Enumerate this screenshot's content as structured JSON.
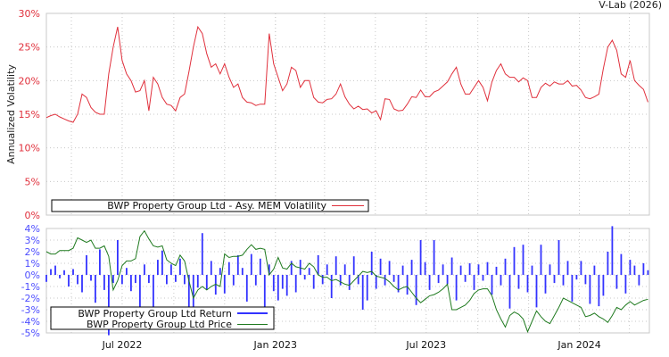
{
  "credit": "V-Lab (2026)",
  "chart_data": [
    {
      "type": "line",
      "title": "",
      "ylabel": "Annualized Volatility",
      "ylim": [
        0,
        30
      ],
      "yticks": [
        "0%",
        "5%",
        "10%",
        "15%",
        "20%",
        "25%",
        "30%"
      ],
      "ytick_values": [
        0,
        5,
        10,
        15,
        20,
        25,
        30
      ],
      "xlim": [
        "2022-04-01",
        "2024-03-25"
      ],
      "grid": true,
      "legend_position": "bottom-left",
      "colors": {
        "line": "#e0303c",
        "ticks": "#e0303c"
      },
      "series": [
        {
          "name": "BWP Property Group Ltd - Asy. MEM Volatility",
          "x_start": "2022-04-01",
          "x_step_days": 5.35,
          "values": [
            14.5,
            14.8,
            15,
            14.6,
            14.3,
            14,
            13.8,
            15,
            18,
            17.5,
            16,
            15.3,
            15,
            15,
            21,
            25,
            28,
            23,
            21,
            20,
            18.3,
            18.5,
            20,
            15.5,
            20.5,
            19.5,
            17.5,
            16.5,
            16.3,
            15.5,
            17.5,
            18,
            21.3,
            25,
            28,
            27,
            24,
            22,
            22.5,
            21,
            22.5,
            20.5,
            19,
            19.5,
            17.5,
            16.8,
            16.7,
            16.3,
            16.5,
            16.5,
            27,
            22.5,
            20.5,
            18.5,
            19.5,
            22,
            21.5,
            19,
            20,
            20,
            17.5,
            16.8,
            16.7,
            17.2,
            17.3,
            18,
            19.5,
            17.6,
            16.5,
            15.8,
            16.2,
            15.7,
            15.8,
            15.2,
            15.5,
            14.2,
            17.3,
            17.2,
            15.8,
            15.5,
            15.6,
            16.5,
            17.6,
            17.5,
            18.6,
            17.6,
            17.6,
            18.3,
            18.6,
            19.2,
            19.8,
            21,
            22,
            19.5,
            18,
            18,
            19,
            20,
            19,
            17,
            19.8,
            21.5,
            22.5,
            21,
            20.5,
            20.5,
            19.8,
            20.4,
            20,
            17.5,
            17.5,
            19,
            19.6,
            19.2,
            19.8,
            19.5,
            19.5,
            20,
            19.2,
            19.3,
            18.6,
            17.5,
            17.3,
            17.6,
            18,
            21.8,
            25,
            26,
            24.5,
            21,
            20.5,
            23,
            20,
            19.3,
            18.7,
            16.8
          ]
        }
      ]
    },
    {
      "type": "bar+line",
      "ylim": [
        -5,
        4
      ],
      "yticks": [
        "-5%",
        "-4%",
        "-3%",
        "-2%",
        "-1%",
        "0%",
        "1%",
        "2%",
        "3%",
        "4%"
      ],
      "ytick_values": [
        -5,
        -4,
        -3,
        -2,
        -1,
        0,
        1,
        2,
        3,
        4
      ],
      "xlim": [
        "2022-04-01",
        "2024-03-25"
      ],
      "xticks": [
        {
          "label": "Jul 2022",
          "date": "2022-07-01"
        },
        {
          "label": "Jan 2023",
          "date": "2023-01-01"
        },
        {
          "label": "Jul 2023",
          "date": "2023-07-01"
        },
        {
          "label": "Jan 2024",
          "date": "2024-01-01"
        }
      ],
      "grid": true,
      "legend_position": "bottom-left",
      "colors": {
        "ticks": "#4d4dff"
      },
      "series": [
        {
          "name": "BWP Property Group Ltd Return",
          "type": "bar",
          "color": "#3333ff",
          "x_start": "2022-04-01",
          "x_step_days": 5.35,
          "values": [
            -0.6,
            0.5,
            0.8,
            -0.3,
            0.4,
            -1,
            0.5,
            -0.8,
            -1.5,
            1.7,
            -0.5,
            -2.4,
            2.2,
            -1.3,
            -5.2,
            -0.7,
            3,
            -0.8,
            0.6,
            -1.4,
            -0.7,
            -2.8,
            0.9,
            -0.7,
            -3,
            1.3,
            2.1,
            -0.8,
            0.9,
            -0.6,
            1.4,
            -0.8,
            -3,
            -3,
            -1.1,
            3.6,
            -1.3,
            1.2,
            -1.7,
            0.6,
            -1.6,
            1.1,
            -0.9,
            1.7,
            0.6,
            -2.3,
            1.8,
            -0.9,
            1.4,
            -3,
            0.9,
            -1.4,
            -2.2,
            -1.2,
            -1.8,
            1.2,
            -1.5,
            1.3,
            -0.4,
            0.6,
            -1.2,
            1.7,
            -0.8,
            0.9,
            -2,
            1.6,
            -0.9,
            0.9,
            -1.3,
            1.6,
            -0.8,
            -3,
            -2.2,
            2,
            -1.2,
            1.4,
            -0.9,
            1.2,
            -0.6,
            -1.5,
            0.8,
            -1.7,
            1.3,
            -2.6,
            3,
            1.1,
            -1.3,
            3,
            -0.7,
            0.9,
            -0.8,
            1.5,
            -2.2,
            0.8,
            -0.6,
            1,
            -1.3,
            0.9,
            -0.5,
            1.1,
            -1.7,
            0.7,
            -0.9,
            1.4,
            -2.9,
            2.4,
            -1.2,
            2.6,
            -1.5,
            0.8,
            -2.8,
            2.6,
            -1.6,
            0.9,
            -0.7,
            3,
            -0.9,
            1.2,
            -2.3,
            -0.4,
            1.2,
            -0.8,
            -2.5,
            0.8,
            -2.7,
            -1.8,
            2,
            4.2,
            -1.2,
            1.8,
            -1.6,
            1.3,
            0.8,
            -0.9,
            1,
            0.4
          ]
        },
        {
          "name": "BWP Property Group Ltd Price",
          "type": "line",
          "color": "#1f7a1f",
          "x_start": "2022-04-01",
          "x_step_days": 5.35,
          "values": [
            2,
            1.8,
            1.8,
            2.1,
            2.1,
            2.1,
            2.3,
            3.2,
            3,
            2.8,
            3,
            2.3,
            2.3,
            2.5,
            1.6,
            -1.3,
            -0.5,
            0.8,
            1.2,
            1.2,
            1.4,
            3.3,
            3.8,
            3.1,
            2.5,
            2.4,
            2.5,
            1.3,
            1,
            0.8,
            1.7,
            1.2,
            -0.5,
            -2,
            -1.3,
            -1,
            -1.3,
            -1,
            -0.8,
            -1,
            1.8,
            1.5,
            1.6,
            1.6,
            1.7,
            2.2,
            2.6,
            2.2,
            2.3,
            2.2,
            0,
            0.5,
            1.5,
            0.6,
            0.5,
            1,
            0.7,
            0.6,
            0.5,
            1,
            0.7,
            0,
            -0.2,
            -0.2,
            -0.5,
            -0.4,
            -0.6,
            -0.8,
            -0.9,
            -0.5,
            -0.1,
            0.3,
            0.2,
            0.3,
            -0.1,
            -0.2,
            -0.3,
            -0.6,
            -1,
            -1.3,
            -1.1,
            -1,
            -1.5,
            -2,
            -2.4,
            -2.1,
            -1.8,
            -1.7,
            -1.5,
            -1.2,
            -0.8,
            -3,
            -3,
            -2.8,
            -2.6,
            -2.2,
            -1.6,
            -1.3,
            -1.2,
            -1.2,
            -1.8,
            -3,
            -3.8,
            -4.5,
            -3.5,
            -3.2,
            -3.4,
            -3.8,
            -4.9,
            -4,
            -3.1,
            -3.6,
            -4,
            -4.2,
            -3.5,
            -2.8,
            -2,
            -2.2,
            -2.4,
            -2.6,
            -2.8,
            -3.6,
            -3.5,
            -3.3,
            -3.6,
            -3.8,
            -4.1,
            -3.5,
            -2.8,
            -3,
            -2.6,
            -2.3,
            -2.6,
            -2.4,
            -2.2,
            -2.1
          ]
        }
      ]
    }
  ]
}
